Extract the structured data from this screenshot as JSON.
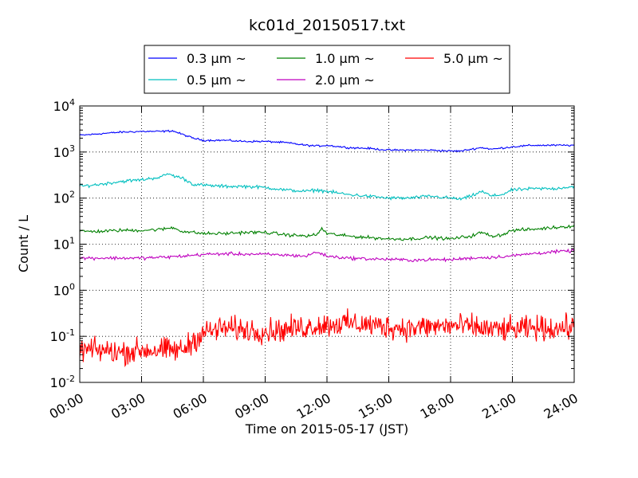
{
  "chart_data": {
    "type": "line",
    "title": "kc01d_20150517.txt",
    "xlabel": "Time on 2015-05-17 (JST)",
    "ylabel": "Count / L",
    "yscale": "log",
    "xlim": [
      "00:00",
      "24:00"
    ],
    "ylim": [
      0.01,
      10000
    ],
    "grid": true,
    "legend_position": "top-center, above plot, 3 columns",
    "xticks": [
      "00:00",
      "03:00",
      "06:00",
      "09:00",
      "12:00",
      "15:00",
      "18:00",
      "21:00",
      "24:00"
    ],
    "yticks": [
      {
        "value": 0.01,
        "base": "10",
        "exp": "-2"
      },
      {
        "value": 0.1,
        "base": "10",
        "exp": "-1"
      },
      {
        "value": 1,
        "base": "10",
        "exp": "0"
      },
      {
        "value": 10,
        "base": "10",
        "exp": "1"
      },
      {
        "value": 100,
        "base": "10",
        "exp": "2"
      },
      {
        "value": 1000,
        "base": "10",
        "exp": "3"
      },
      {
        "value": 10000,
        "base": "10",
        "exp": "4"
      }
    ],
    "series": [
      {
        "name": "0.3 μm ~",
        "label_size": "0.3",
        "color": "#0000ff",
        "noise": 0.02,
        "x": [
          "00:00",
          "01:00",
          "02:00",
          "03:00",
          "04:00",
          "04:30",
          "05:00",
          "05:30",
          "06:00",
          "07:00",
          "08:00",
          "09:00",
          "10:00",
          "11:00",
          "11:30",
          "12:00",
          "13:00",
          "14:00",
          "15:00",
          "16:00",
          "17:00",
          "18:00",
          "18:30",
          "19:00",
          "19:30",
          "20:00",
          "21:00",
          "22:00",
          "23:00",
          "24:00"
        ],
        "values": [
          2300,
          2500,
          2700,
          2800,
          2800,
          2900,
          2400,
          2000,
          1800,
          1800,
          1700,
          1700,
          1600,
          1400,
          1350,
          1400,
          1250,
          1200,
          1100,
          1100,
          1100,
          1050,
          1050,
          1150,
          1250,
          1150,
          1300,
          1400,
          1400,
          1400
        ]
      },
      {
        "name": "0.5 μm ~",
        "label_size": "0.5",
        "color": "#00bfbf",
        "noise": 0.035,
        "x": [
          "00:00",
          "01:00",
          "02:00",
          "03:00",
          "04:00",
          "04:15",
          "04:30",
          "05:00",
          "05:30",
          "06:00",
          "07:00",
          "08:00",
          "09:00",
          "10:00",
          "11:00",
          "11:30",
          "12:00",
          "13:00",
          "14:00",
          "15:00",
          "16:00",
          "17:00",
          "18:00",
          "18:30",
          "19:00",
          "19:30",
          "20:00",
          "20:30",
          "21:00",
          "22:00",
          "23:00",
          "24:00"
        ],
        "values": [
          180,
          200,
          230,
          250,
          290,
          340,
          310,
          270,
          200,
          190,
          180,
          180,
          170,
          150,
          140,
          150,
          140,
          120,
          110,
          100,
          100,
          110,
          100,
          95,
          110,
          140,
          110,
          120,
          150,
          160,
          160,
          180
        ]
      },
      {
        "name": "1.0 μm ~",
        "label_size": "1.0",
        "color": "#008000",
        "noise": 0.035,
        "x": [
          "00:00",
          "01:00",
          "02:00",
          "03:00",
          "04:00",
          "04:30",
          "05:00",
          "06:00",
          "07:00",
          "08:00",
          "09:00",
          "10:00",
          "11:00",
          "11:30",
          "11:45",
          "12:00",
          "13:00",
          "14:00",
          "15:00",
          "16:00",
          "17:00",
          "18:00",
          "18:30",
          "19:00",
          "19:30",
          "20:00",
          "20:30",
          "21:00",
          "22:00",
          "23:00",
          "24:00"
        ],
        "values": [
          19,
          19,
          20,
          20,
          21,
          23,
          19,
          17,
          17,
          18,
          18,
          16,
          15,
          16,
          22,
          17,
          15,
          14,
          13,
          13,
          14,
          13,
          14,
          15,
          18,
          15,
          16,
          20,
          21,
          23,
          25
        ]
      },
      {
        "name": "2.0 μm ~",
        "label_size": "2.0",
        "color": "#bf00bf",
        "noise": 0.035,
        "x": [
          "00:00",
          "01:00",
          "02:00",
          "03:00",
          "04:00",
          "05:00",
          "06:00",
          "07:00",
          "08:00",
          "09:00",
          "10:00",
          "11:00",
          "11:30",
          "12:00",
          "13:00",
          "14:00",
          "15:00",
          "16:00",
          "17:00",
          "18:00",
          "19:00",
          "20:00",
          "21:00",
          "22:00",
          "23:00",
          "24:00"
        ],
        "values": [
          5,
          5,
          5,
          5,
          5.2,
          5.5,
          6,
          6.2,
          6.1,
          6,
          5.8,
          5.5,
          6.8,
          5.5,
          5,
          4.8,
          4.7,
          4.5,
          4.6,
          4.6,
          5,
          5.2,
          5.6,
          6.3,
          6.8,
          7.2
        ]
      },
      {
        "name": "5.0 μm ~",
        "label_size": "5.0",
        "color": "#ff0000",
        "noise": 0.26,
        "x": [
          "00:00",
          "01:00",
          "02:00",
          "03:00",
          "04:00",
          "05:00",
          "05:30",
          "06:00",
          "07:00",
          "08:00",
          "09:00",
          "10:00",
          "11:00",
          "12:00",
          "13:00",
          "14:00",
          "15:00",
          "16:00",
          "17:00",
          "18:00",
          "19:00",
          "20:00",
          "21:00",
          "22:00",
          "23:00",
          "24:00"
        ],
        "values": [
          0.05,
          0.05,
          0.045,
          0.05,
          0.05,
          0.05,
          0.08,
          0.12,
          0.15,
          0.14,
          0.13,
          0.14,
          0.16,
          0.18,
          0.19,
          0.18,
          0.16,
          0.15,
          0.16,
          0.17,
          0.16,
          0.14,
          0.14,
          0.15,
          0.15,
          0.16
        ]
      }
    ]
  }
}
